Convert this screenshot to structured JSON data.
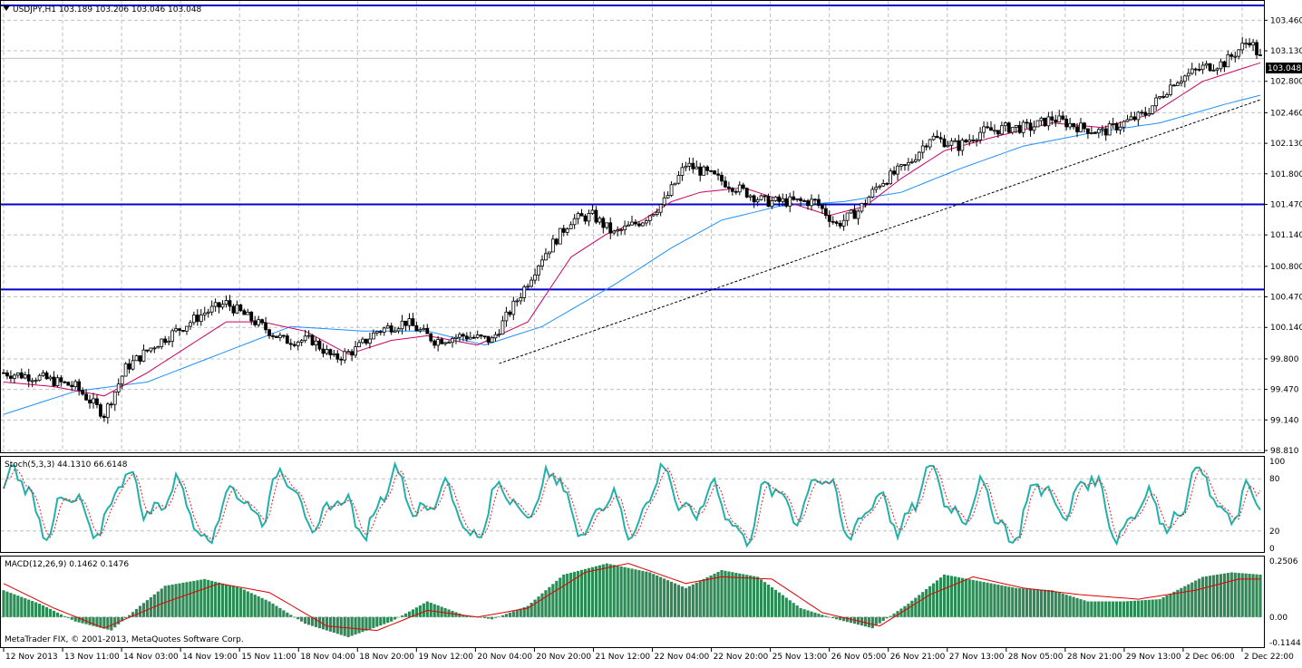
{
  "main_chart": {
    "info": "USDJPY,H1  103.189 103.206 103.046 103.048",
    "price_badge": "103.048",
    "y_ticks": [
      "103.460",
      "103.130",
      "102.800",
      "102.460",
      "102.130",
      "101.800",
      "101.470",
      "101.140",
      "100.800",
      "100.470",
      "100.140",
      "99.800",
      "99.470",
      "99.140",
      "98.810"
    ],
    "watermark": "MetaTrader FIX, © 2001-2013, MetaQuotes Software Corp."
  },
  "stoch_panel": {
    "label": "Stoch(5,3,3) 44.1310 66.6148",
    "levels": [
      "100",
      "80",
      "20",
      "0"
    ]
  },
  "macd_panel": {
    "label": "MACD(12,26,9) 0.1462 0.1476",
    "levels": [
      "0.2506",
      "0.00",
      "-0.1144"
    ]
  },
  "time_axis": [
    "12 Nov 2013",
    "13 Nov 11:00",
    "14 Nov 03:00",
    "14 Nov 19:00",
    "15 Nov 11:00",
    "18 Nov 04:00",
    "18 Nov 20:00",
    "19 Nov 12:00",
    "20 Nov 04:00",
    "20 Nov 20:00",
    "21 Nov 12:00",
    "22 Nov 04:00",
    "22 Nov 20:00",
    "25 Nov 13:00",
    "26 Nov 05:00",
    "26 Nov 21:00",
    "27 Nov 13:00",
    "28 Nov 05:00",
    "28 Nov 21:00",
    "29 Nov 13:00",
    "2 Dec 06:00",
    "2 Dec 22:00"
  ],
  "colors": {
    "bull_body": "#ffffff",
    "bear_body": "#000000",
    "fast_ma": "#cc0066",
    "slow_ma": "#1e90ff",
    "hlines": "#0000cc",
    "stoch_main": "#20b2aa",
    "stoch_signal": "#e02020",
    "macd_hist": "#2e8b57",
    "macd_signal": "#e00000"
  },
  "chart_data": [
    {
      "type": "candlestick",
      "symbol": "USDJPY",
      "timeframe": "H1",
      "ylim": [
        98.81,
        103.62
      ],
      "last_close": 103.048,
      "horizontal_levels": [
        103.62,
        101.47,
        100.55
      ],
      "series": [
        {
          "name": "close",
          "anchors": [
            [
              0,
              99.65
            ],
            [
              10,
              99.6
            ],
            [
              20,
              99.5
            ],
            [
              28,
              99.2
            ],
            [
              34,
              99.7
            ],
            [
              42,
              99.95
            ],
            [
              48,
              100.1
            ],
            [
              56,
              100.3
            ],
            [
              62,
              100.4
            ],
            [
              70,
              100.2
            ],
            [
              78,
              100.0
            ],
            [
              86,
              100.0
            ],
            [
              92,
              99.8
            ],
            [
              98,
              99.9
            ],
            [
              104,
              100.1
            ],
            [
              112,
              100.2
            ],
            [
              120,
              100.0
            ],
            [
              128,
              100.05
            ],
            [
              136,
              100.0
            ],
            [
              144,
              100.5
            ],
            [
              150,
              100.9
            ],
            [
              158,
              101.3
            ],
            [
              164,
              101.35
            ],
            [
              170,
              101.15
            ],
            [
              178,
              101.3
            ],
            [
              184,
              101.5
            ],
            [
              190,
              101.9
            ],
            [
              196,
              101.8
            ],
            [
              204,
              101.65
            ],
            [
              212,
              101.5
            ],
            [
              220,
              101.5
            ],
            [
              226,
              101.5
            ],
            [
              232,
              101.25
            ],
            [
              238,
              101.4
            ],
            [
              244,
              101.7
            ],
            [
              252,
              101.9
            ],
            [
              258,
              102.2
            ],
            [
              266,
              102.1
            ],
            [
              272,
              102.25
            ],
            [
              280,
              102.3
            ],
            [
              286,
              102.3
            ],
            [
              292,
              102.4
            ],
            [
              300,
              102.3
            ],
            [
              306,
              102.25
            ],
            [
              312,
              102.35
            ],
            [
              318,
              102.45
            ],
            [
              326,
              102.8
            ],
            [
              334,
              102.95
            ],
            [
              340,
              103.0
            ],
            [
              347,
              103.25
            ],
            [
              350,
              103.05
            ]
          ]
        },
        {
          "name": "fast_ma",
          "anchors": [
            [
              0,
              99.55
            ],
            [
              14,
              99.5
            ],
            [
              28,
              99.4
            ],
            [
              40,
              99.65
            ],
            [
              52,
              99.95
            ],
            [
              62,
              100.2
            ],
            [
              72,
              100.2
            ],
            [
              84,
              100.1
            ],
            [
              96,
              99.85
            ],
            [
              108,
              100.0
            ],
            [
              118,
              100.05
            ],
            [
              132,
              99.95
            ],
            [
              146,
              100.2
            ],
            [
              158,
              100.9
            ],
            [
              168,
              101.15
            ],
            [
              178,
              101.3
            ],
            [
              186,
              101.5
            ],
            [
              194,
              101.6
            ],
            [
              206,
              101.65
            ],
            [
              218,
              101.5
            ],
            [
              230,
              101.35
            ],
            [
              240,
              101.45
            ],
            [
              250,
              101.75
            ],
            [
              262,
              102.05
            ],
            [
              276,
              102.2
            ],
            [
              292,
              102.35
            ],
            [
              306,
              102.3
            ],
            [
              320,
              102.45
            ],
            [
              334,
              102.8
            ],
            [
              350,
              103.0
            ]
          ]
        },
        {
          "name": "slow_ma",
          "anchors": [
            [
              0,
              99.2
            ],
            [
              20,
              99.45
            ],
            [
              40,
              99.55
            ],
            [
              60,
              99.85
            ],
            [
              80,
              100.15
            ],
            [
              100,
              100.1
            ],
            [
              118,
              100.1
            ],
            [
              134,
              99.95
            ],
            [
              150,
              100.15
            ],
            [
              170,
              100.6
            ],
            [
              186,
              101.0
            ],
            [
              200,
              101.3
            ],
            [
              216,
              101.45
            ],
            [
              234,
              101.5
            ],
            [
              250,
              101.6
            ],
            [
              266,
              101.85
            ],
            [
              284,
              102.1
            ],
            [
              304,
              102.25
            ],
            [
              322,
              102.35
            ],
            [
              340,
              102.55
            ],
            [
              350,
              102.65
            ]
          ]
        },
        {
          "name": "trendline",
          "anchors": [
            [
              138,
              99.75
            ],
            [
              350,
              102.6
            ]
          ]
        }
      ]
    },
    {
      "type": "line",
      "indicator": "Stoch(5,3,3)",
      "ylim": [
        0,
        100
      ],
      "levels": [
        80,
        20
      ],
      "last_main": 44.131,
      "last_signal": 66.6148
    },
    {
      "type": "bar",
      "indicator": "MACD(12,26,9)",
      "ylim": [
        -0.1144,
        0.2506
      ],
      "last_macd": 0.1462,
      "last_signal": 0.1476,
      "histogram_anchors": [
        [
          0,
          0.12
        ],
        [
          10,
          0.06
        ],
        [
          20,
          -0.02
        ],
        [
          30,
          -0.06
        ],
        [
          38,
          0.05
        ],
        [
          45,
          0.14
        ],
        [
          56,
          0.17
        ],
        [
          66,
          0.13
        ],
        [
          74,
          0.07
        ],
        [
          84,
          -0.03
        ],
        [
          96,
          -0.09
        ],
        [
          108,
          -0.02
        ],
        [
          118,
          0.07
        ],
        [
          128,
          0.01
        ],
        [
          136,
          -0.01
        ],
        [
          146,
          0.05
        ],
        [
          156,
          0.19
        ],
        [
          168,
          0.24
        ],
        [
          180,
          0.2
        ],
        [
          190,
          0.13
        ],
        [
          200,
          0.21
        ],
        [
          210,
          0.18
        ],
        [
          222,
          0.04
        ],
        [
          232,
          -0.01
        ],
        [
          242,
          -0.05
        ],
        [
          252,
          0.06
        ],
        [
          262,
          0.19
        ],
        [
          272,
          0.16
        ],
        [
          282,
          0.13
        ],
        [
          292,
          0.12
        ],
        [
          302,
          0.07
        ],
        [
          312,
          0.07
        ],
        [
          322,
          0.08
        ],
        [
          334,
          0.18
        ],
        [
          342,
          0.2
        ],
        [
          350,
          0.19
        ]
      ],
      "signal_anchors": [
        [
          0,
          0.15
        ],
        [
          14,
          0.04
        ],
        [
          28,
          -0.05
        ],
        [
          44,
          0.06
        ],
        [
          60,
          0.15
        ],
        [
          74,
          0.11
        ],
        [
          90,
          -0.04
        ],
        [
          104,
          -0.06
        ],
        [
          118,
          0.03
        ],
        [
          132,
          0.0
        ],
        [
          146,
          0.04
        ],
        [
          162,
          0.2
        ],
        [
          174,
          0.24
        ],
        [
          190,
          0.15
        ],
        [
          200,
          0.18
        ],
        [
          214,
          0.17
        ],
        [
          228,
          0.02
        ],
        [
          244,
          -0.04
        ],
        [
          258,
          0.1
        ],
        [
          270,
          0.18
        ],
        [
          284,
          0.13
        ],
        [
          300,
          0.1
        ],
        [
          316,
          0.08
        ],
        [
          332,
          0.12
        ],
        [
          344,
          0.17
        ],
        [
          350,
          0.17
        ]
      ]
    }
  ]
}
